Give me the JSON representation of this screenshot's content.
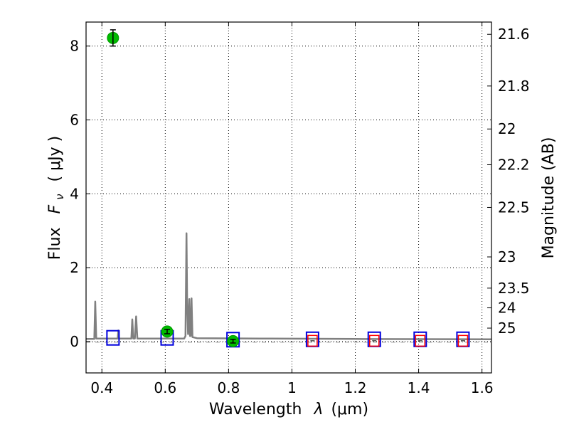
{
  "chart_data": {
    "type": "scatter",
    "title": "",
    "xlabel_prefix": "Wavelength",
    "xlabel_symbol": "λ",
    "xlabel_unit": "(μm)",
    "ylabel_prefix": "Flux",
    "ylabel_symbol": "F",
    "ylabel_subscript": "ν",
    "ylabel_unit": "( μJy )",
    "y2label": "Magnitude (AB)",
    "xlim": [
      0.35,
      1.63
    ],
    "ylim": [
      -0.85,
      8.65
    ],
    "grid": true,
    "xticks": [
      0.4,
      0.6,
      0.8,
      1.0,
      1.2,
      1.4,
      1.6
    ],
    "xtick_labels": [
      "0.4",
      "0.6",
      "0.8",
      "1",
      "1.2",
      "1.4",
      "1.6"
    ],
    "yticks": [
      0,
      2,
      4,
      6,
      8
    ],
    "ytick_labels": [
      "0",
      "2",
      "4",
      "6",
      "8"
    ],
    "mag_ticks": [
      21.6,
      21.8,
      22,
      22.2,
      22.5,
      23,
      23.5,
      24,
      25
    ],
    "mag_tick_labels": [
      "21.6",
      "21.8",
      "22",
      "22.2",
      "22.5",
      "23",
      "23.5",
      "24",
      "25"
    ],
    "series": [
      {
        "name": "Observed photometry",
        "color": "#00bb00",
        "marker": "circle",
        "x": [
          0.435,
          0.606,
          0.814
        ],
        "y": [
          8.22,
          0.27,
          0.01
        ],
        "yerr": [
          0.22,
          0.06,
          0.05
        ]
      },
      {
        "name": "Model photometry",
        "color": "#0000dd",
        "marker": "square",
        "x": [
          0.435,
          0.606,
          0.814,
          1.065,
          1.26,
          1.405,
          1.54
        ],
        "y": [
          0.1,
          0.1,
          0.05,
          0.06,
          0.06,
          0.06,
          0.06
        ]
      },
      {
        "name": "Upper limits",
        "color": "#ff0000",
        "marker": "square",
        "x": [
          1.065,
          1.26,
          1.405,
          1.54
        ],
        "y": [
          0.02,
          0.02,
          0.02,
          0.02
        ]
      },
      {
        "name": "Model spectrum",
        "color": "#808080",
        "type": "line",
        "points": [
          [
            0.35,
            0.07
          ],
          [
            0.376,
            0.07
          ],
          [
            0.379,
            1.08
          ],
          [
            0.382,
            0.08
          ],
          [
            0.45,
            0.08
          ],
          [
            0.452,
            0.3
          ],
          [
            0.454,
            0.08
          ],
          [
            0.493,
            0.08
          ],
          [
            0.496,
            0.6
          ],
          [
            0.499,
            0.08
          ],
          [
            0.504,
            0.08
          ],
          [
            0.508,
            0.68
          ],
          [
            0.512,
            0.08
          ],
          [
            0.6,
            0.08
          ],
          [
            0.66,
            0.08
          ],
          [
            0.664,
            0.15
          ],
          [
            0.667,
            2.93
          ],
          [
            0.669,
            1.1
          ],
          [
            0.672,
            0.2
          ],
          [
            0.676,
            1.15
          ],
          [
            0.678,
            0.15
          ],
          [
            0.68,
            0.15
          ],
          [
            0.683,
            1.17
          ],
          [
            0.686,
            0.12
          ],
          [
            0.7,
            0.09
          ],
          [
            0.9,
            0.08
          ],
          [
            1.2,
            0.07
          ],
          [
            1.63,
            0.06
          ]
        ]
      },
      {
        "name": "Zero level",
        "color": "#999999",
        "type": "dashdot",
        "y": -0.02
      }
    ]
  }
}
